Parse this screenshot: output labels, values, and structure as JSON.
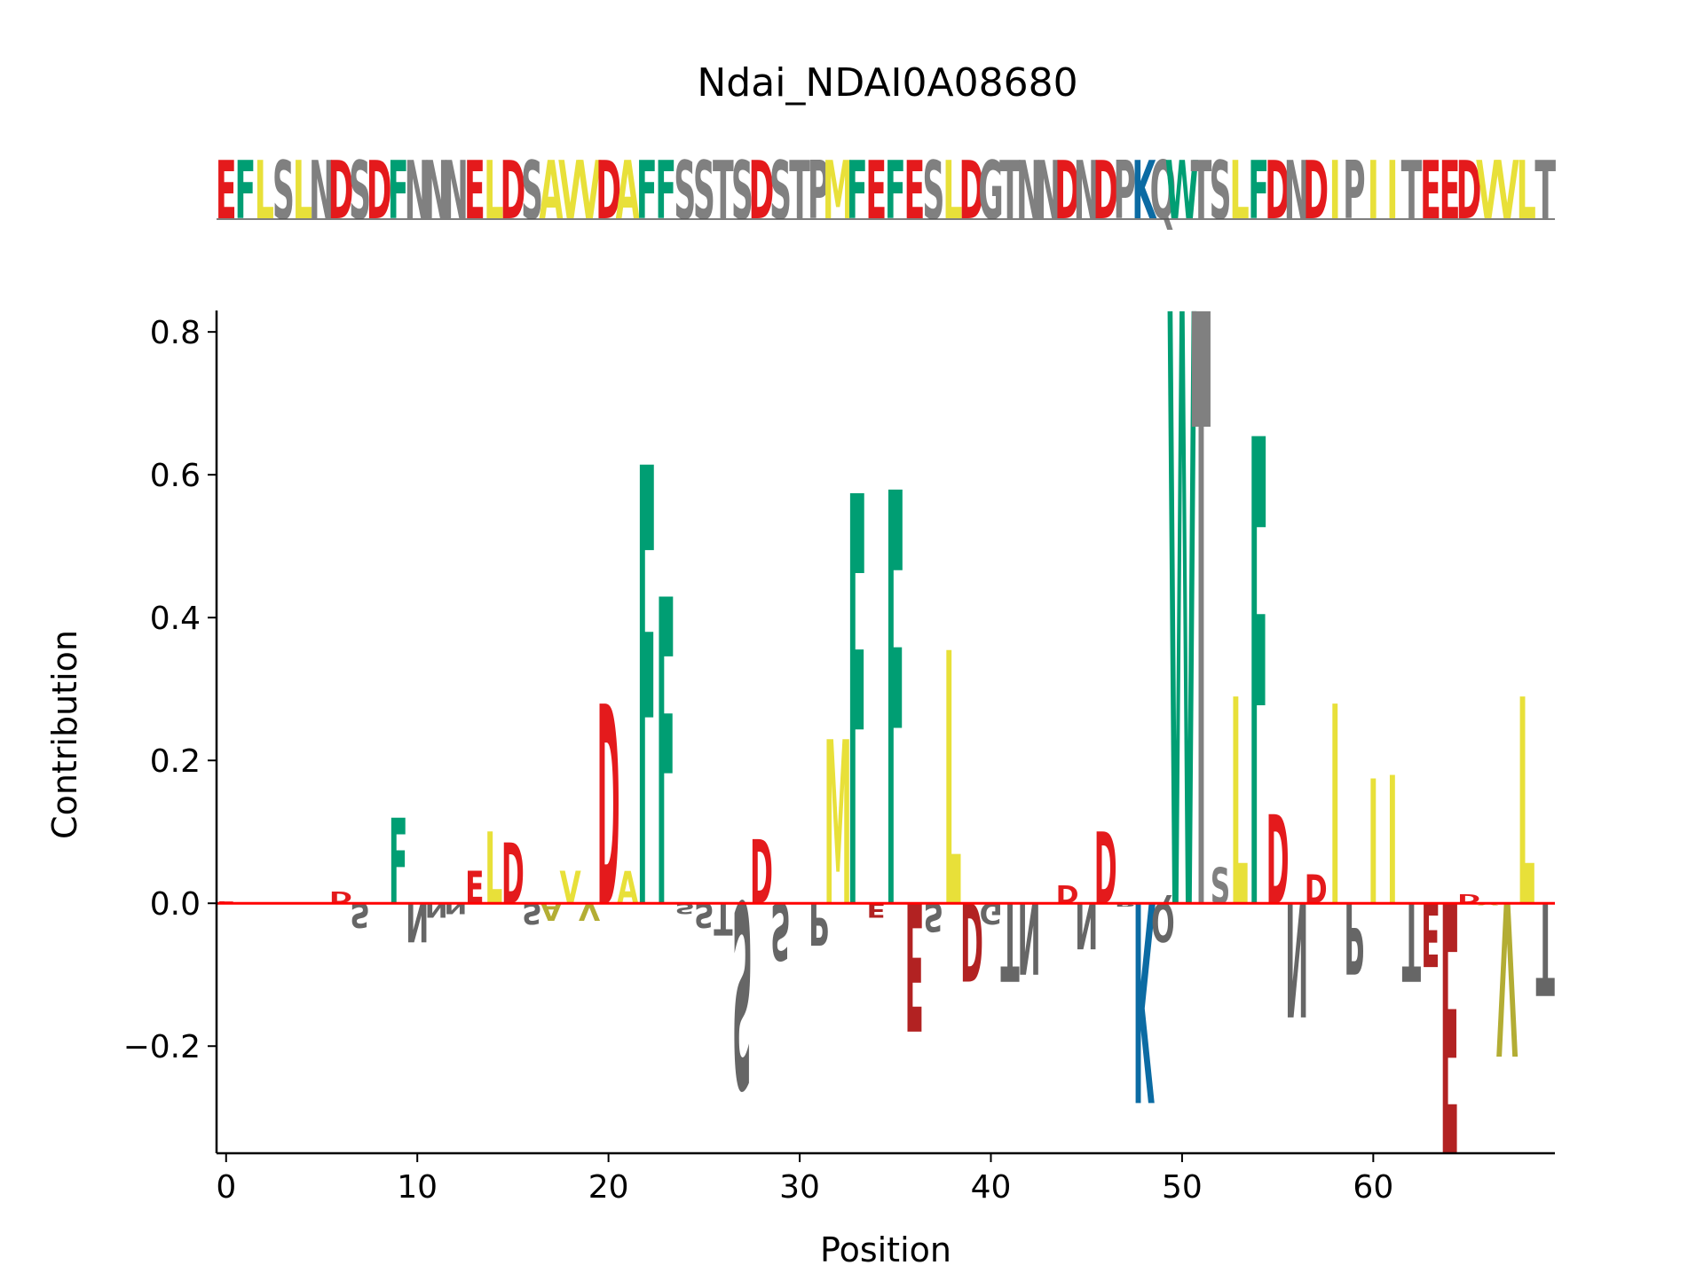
{
  "colors": {
    "acidic": "#e41a1c",
    "acidic_negative": "#b22222",
    "polar": "#808080",
    "polar_negative": "#666666",
    "hydrophobic": "#e8e039",
    "hydrophobic_negative": "#b3ad34",
    "aromatic": "#009e73",
    "basic": "#0b6ba3",
    "baseline": "#ff0000",
    "axis": "#000000"
  },
  "chart_data": {
    "type": "sequence-logo",
    "title": "Ndai_NDAI0A08680",
    "xlabel": "Position",
    "ylabel": "Contribution",
    "xlim": [
      -0.5,
      69.5
    ],
    "ylim": [
      -0.35,
      0.83
    ],
    "xticks": [
      0,
      10,
      20,
      30,
      40,
      50,
      60
    ],
    "yticks": [
      -0.2,
      0.0,
      0.2,
      0.4,
      0.6,
      0.8
    ],
    "ytick_labels": [
      "−0.2",
      "0.0",
      "0.2",
      "0.4",
      "0.6",
      "0.8"
    ],
    "sequence": "EFLSLNDSDFNNNELDSAVVDAFFSSTSDSTPMFEFESLDGTNNDNDPKQWTSLFDNDIPIITEEDVVLT",
    "contributions": [
      0.002,
      0.0,
      -0.001,
      0.001,
      0.0,
      0.0,
      0.016,
      -0.035,
      -0.001,
      0.12,
      -0.055,
      -0.02,
      -0.015,
      0.045,
      0.1,
      0.085,
      -0.03,
      -0.025,
      0.045,
      -0.025,
      0.28,
      0.045,
      0.615,
      0.43,
      -0.015,
      -0.035,
      -0.045,
      -0.26,
      0.09,
      -0.08,
      0.0,
      -0.06,
      0.23,
      0.575,
      -0.02,
      0.58,
      -0.18,
      -0.04,
      0.355,
      -0.11,
      -0.03,
      -0.11,
      -0.1,
      0.0,
      0.025,
      -0.065,
      0.1,
      -0.005,
      -0.28,
      -0.055,
      0.83,
      0.83,
      0.05,
      0.29,
      0.655,
      0.125,
      -0.16,
      0.04,
      0.28,
      -0.1,
      0.175,
      0.18,
      -0.11,
      -0.09,
      -0.35,
      0.012,
      -0.003,
      -0.215,
      0.29,
      -0.13
    ]
  }
}
